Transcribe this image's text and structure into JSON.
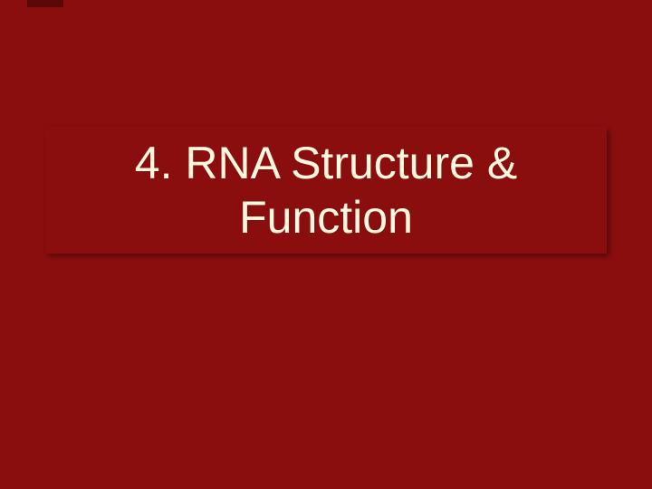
{
  "slide": {
    "title": "4. RNA Structure & Function",
    "background_color": "#8b0e0e",
    "title_color": "#fff8e1",
    "title_fontsize": 50,
    "title_font_family": "Verdana",
    "accent_color": "#5a0808",
    "title_text_align": "center",
    "box_shadow": "3px 3px 6px rgba(0,0,0,0.4)"
  }
}
